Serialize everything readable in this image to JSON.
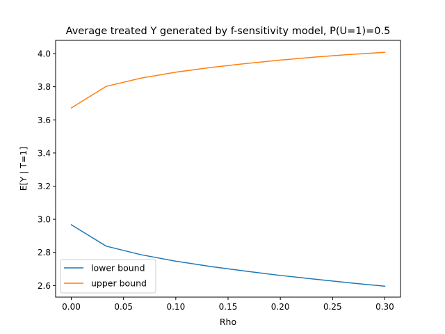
{
  "chart_data": {
    "type": "line",
    "title": "Average treated Y generated by f-sensitivity model, P(U=1)=0.5",
    "xlabel": "Rho",
    "ylabel": "E[Y | T=1]",
    "xlim": [
      -0.015,
      0.315
    ],
    "ylim": [
      2.53,
      4.08
    ],
    "x_ticks": [
      0.0,
      0.05,
      0.1,
      0.15,
      0.2,
      0.25,
      0.3
    ],
    "x_tick_labels": [
      "0.00",
      "0.05",
      "0.10",
      "0.15",
      "0.20",
      "0.25",
      "0.30"
    ],
    "y_ticks": [
      2.6,
      2.8,
      3.0,
      3.2,
      3.4,
      3.6,
      3.8,
      4.0
    ],
    "y_tick_labels": [
      "2.6",
      "2.8",
      "3.0",
      "3.2",
      "3.4",
      "3.6",
      "3.8",
      "4.0"
    ],
    "x": [
      0.0,
      0.0333,
      0.0667,
      0.1,
      0.1333,
      0.1667,
      0.2,
      0.2333,
      0.2667,
      0.3
    ],
    "series": [
      {
        "name": "lower bound",
        "color": "#1f77b4",
        "values": [
          2.967,
          2.838,
          2.786,
          2.747,
          2.715,
          2.687,
          2.661,
          2.638,
          2.616,
          2.596
        ]
      },
      {
        "name": "upper bound",
        "color": "#ff7f0e",
        "values": [
          3.672,
          3.802,
          3.852,
          3.888,
          3.916,
          3.94,
          3.961,
          3.979,
          3.995,
          4.008
        ]
      }
    ],
    "grid": false,
    "legend_position": "lower-left"
  }
}
